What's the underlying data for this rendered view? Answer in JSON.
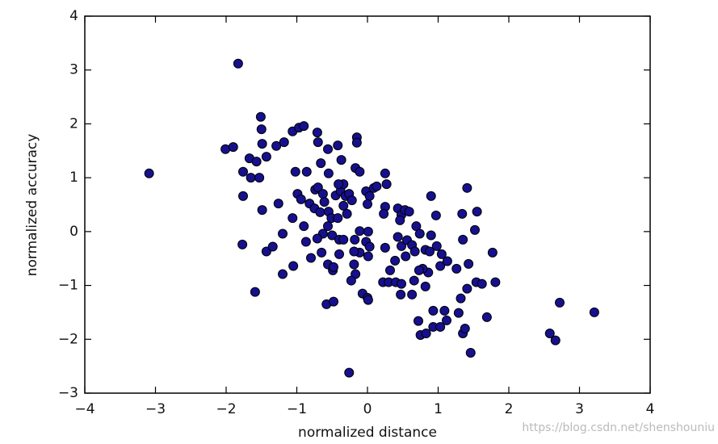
{
  "chart_data": {
    "type": "scatter",
    "xlabel": "normalized distance",
    "ylabel": "normalized accuracy",
    "watermark": "https://blog.csdn.net/shenshouniu",
    "color": "#16108f",
    "xlim": [
      -4,
      4
    ],
    "ylim": [
      -3,
      4
    ],
    "xticks": [
      {
        "value": -4,
        "label": "−4"
      },
      {
        "value": -3,
        "label": "−3"
      },
      {
        "value": -2,
        "label": "−2"
      },
      {
        "value": -1,
        "label": "−1"
      },
      0,
      1,
      2,
      3,
      4
    ],
    "yticks": [
      {
        "value": -3,
        "label": "−3"
      },
      {
        "value": -2,
        "label": "−2"
      },
      {
        "value": -1,
        "label": "−1"
      },
      0,
      1,
      2,
      3,
      4
    ],
    "x": [
      -1.83,
      -3.09,
      -1.51,
      -1.5,
      -2.01,
      -1.9,
      -1.49,
      -1.76,
      -1.67,
      -1.57,
      -1.65,
      -1.53,
      -1.43,
      -1.29,
      -1.18,
      -1.76,
      -1.49,
      -1.77,
      -1.59,
      -1.43,
      -1.34,
      -1.2,
      -1.2,
      -1.26,
      -1.06,
      -0.97,
      -0.9,
      -1.02,
      -0.86,
      -0.99,
      -0.94,
      -1.06,
      -0.9,
      -0.82,
      -0.87,
      -0.8,
      -1.05,
      -0.71,
      -0.7,
      -0.66,
      -0.56,
      -0.42,
      -0.37,
      -0.55,
      -0.15,
      -0.15,
      -0.17,
      -0.11,
      -0.74,
      -0.7,
      -0.63,
      -0.75,
      -0.67,
      -0.61,
      -0.55,
      -0.51,
      -0.45,
      -0.38,
      -0.34,
      -0.31,
      -0.26,
      -0.22,
      -0.34,
      -0.41,
      -0.29,
      -0.42,
      -0.56,
      -0.63,
      -0.71,
      -0.5,
      -0.4,
      -0.34,
      -0.18,
      -0.11,
      0.01,
      -0.02,
      0.03,
      -0.11,
      0.01,
      -0.19,
      -0.4,
      -0.65,
      -0.56,
      -0.49,
      -0.48,
      -0.19,
      -0.17,
      -0.23,
      -0.58,
      -0.48,
      -0.07,
      0.0,
      0.01,
      -0.26,
      -0.02,
      0.03,
      0.0,
      0.09,
      0.13,
      0.25,
      0.27,
      0.25,
      0.23,
      0.43,
      0.48,
      0.46,
      0.53,
      0.59,
      0.25,
      0.39,
      0.43,
      0.48,
      0.56,
      0.69,
      0.74,
      0.63,
      0.67,
      0.54,
      0.32,
      0.22,
      0.3,
      0.4,
      0.48,
      0.66,
      0.47,
      0.63,
      0.82,
      0.86,
      0.9,
      0.97,
      0.9,
      0.82,
      0.88,
      0.98,
      1.03,
      1.05,
      1.13,
      0.78,
      0.73,
      0.72,
      0.75,
      0.83,
      0.93,
      0.93,
      1.03,
      1.09,
      1.12,
      1.29,
      1.32,
      1.41,
      1.35,
      1.38,
      1.46,
      1.41,
      1.34,
      1.55,
      1.52,
      1.43,
      1.35,
      1.26,
      1.54,
      1.62,
      1.77,
      1.81,
      1.69,
      2.58,
      2.66,
      2.72,
      3.21
    ],
    "values": [
      3.12,
      1.08,
      2.13,
      1.9,
      1.53,
      1.57,
      1.63,
      1.11,
      1.36,
      1.3,
      1.0,
      1.0,
      1.39,
      1.59,
      1.66,
      0.66,
      0.4,
      -0.24,
      -1.12,
      -0.37,
      -0.28,
      -0.04,
      -0.79,
      0.52,
      1.86,
      1.93,
      1.96,
      1.11,
      1.11,
      0.7,
      0.6,
      0.25,
      0.1,
      0.52,
      -0.19,
      -0.49,
      -0.64,
      1.84,
      1.66,
      1.27,
      1.53,
      1.6,
      1.33,
      1.08,
      1.75,
      1.65,
      1.18,
      1.11,
      0.78,
      0.82,
      0.7,
      0.43,
      0.36,
      0.55,
      0.37,
      0.25,
      0.67,
      0.75,
      0.48,
      0.66,
      0.7,
      0.58,
      0.88,
      0.88,
      0.33,
      0.25,
      0.1,
      -0.04,
      -0.13,
      -0.07,
      -0.15,
      -0.15,
      -0.15,
      0.01,
      0.0,
      -0.19,
      -0.28,
      -0.39,
      -0.46,
      -0.37,
      -0.42,
      -0.39,
      -0.61,
      -0.72,
      -0.66,
      -0.61,
      -0.79,
      -0.91,
      -1.35,
      -1.3,
      -1.15,
      -1.23,
      -1.27,
      -2.62,
      0.75,
      0.66,
      0.51,
      0.81,
      0.84,
      1.08,
      0.88,
      0.46,
      0.33,
      0.43,
      0.31,
      0.21,
      0.4,
      0.37,
      -0.3,
      -0.54,
      -0.1,
      -0.27,
      -0.16,
      0.1,
      -0.04,
      -0.25,
      -0.37,
      -0.46,
      -0.72,
      -0.94,
      -0.94,
      -0.94,
      -0.97,
      -0.91,
      -1.17,
      -1.17,
      -1.02,
      -0.76,
      0.66,
      0.3,
      -0.07,
      -0.34,
      -0.37,
      -0.27,
      -0.64,
      -0.42,
      -0.55,
      -0.69,
      -0.72,
      -1.66,
      -1.92,
      -1.89,
      -1.47,
      -1.77,
      -1.77,
      -1.47,
      -1.65,
      -1.51,
      -1.24,
      -1.06,
      -1.89,
      -1.8,
      -2.25,
      0.81,
      0.33,
      0.37,
      0.03,
      -0.6,
      -0.15,
      -0.69,
      -0.94,
      -0.97,
      -0.39,
      -0.94,
      -1.59,
      -1.89,
      -2.02,
      -1.32,
      -1.5
    ]
  }
}
